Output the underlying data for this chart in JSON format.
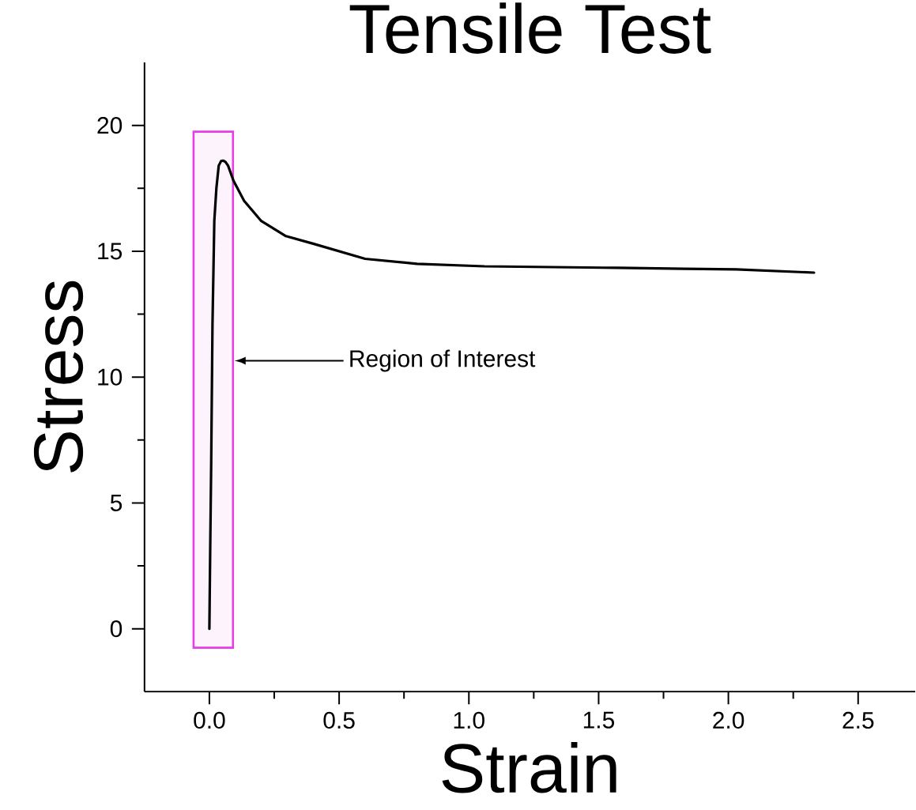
{
  "chart_data": {
    "type": "line",
    "title": "Tensile Test",
    "xlabel": "Strain",
    "ylabel": "Stress",
    "x": [
      0,
      0.003,
      0.007,
      0.012,
      0.019,
      0.027,
      0.036,
      0.045,
      0.053,
      0.062,
      0.072,
      0.093,
      0.134,
      0.2,
      0.295,
      0.4,
      0.6,
      0.8,
      1.06,
      1.57,
      1.83,
      2.03,
      2.33
    ],
    "series": [
      {
        "color": "#000000",
        "values": [
          0,
          3.0,
          6.6,
          12.1,
          16.2,
          17.5,
          18.4,
          18.58,
          18.6,
          18.55,
          18.4,
          17.8,
          17.0,
          16.2,
          15.6,
          15.3,
          14.7,
          14.5,
          14.4,
          14.34,
          14.3,
          14.28,
          14.15
        ]
      }
    ],
    "xlim": [
      -0.25,
      2.72
    ],
    "ylim": [
      -2.5,
      22.5
    ],
    "xticks": [
      {
        "value": 0,
        "label": "0.0"
      },
      0.5,
      {
        "value": 1,
        "label": "1.0"
      },
      1.5,
      {
        "value": 2,
        "label": "2.0"
      },
      2.5
    ],
    "yticks": [
      0,
      5,
      10,
      15,
      20
    ],
    "bands": [
      {
        "axis": "x",
        "from": -0.061,
        "to": 0.091,
        "color": "#e53ee5"
      }
    ],
    "annotations": [
      "Region of Interest"
    ]
  }
}
